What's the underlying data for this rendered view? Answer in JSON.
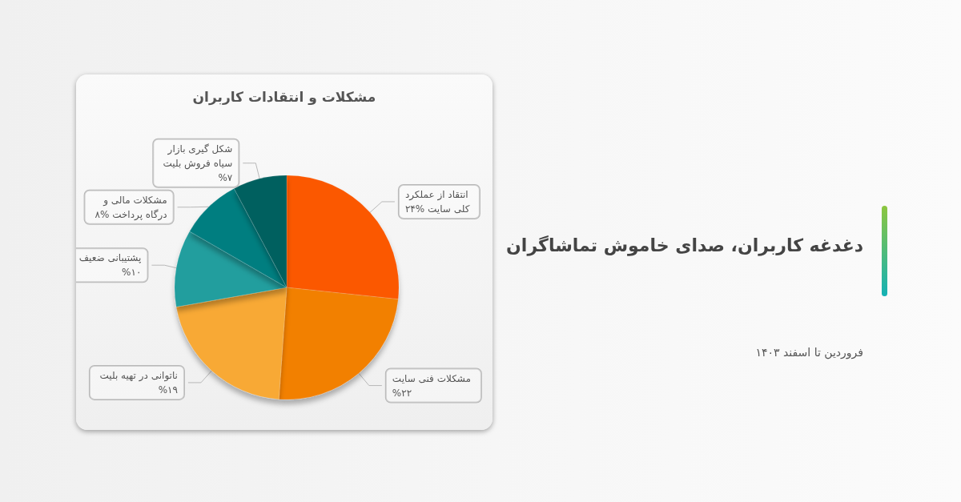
{
  "chart_data": {
    "type": "pie",
    "title": "مشکلات و انتقادات کاربران",
    "subtitle": "دغدغه کاربران، صدای خاموش تماشاگران",
    "annotations": [
      "فروردین تا اسفند ۱۴۰۳"
    ],
    "categories": [
      "انتقاد از عملکرد کلی سایت",
      "مشکلات فنی سایت",
      "ناتوانی در تهیه بلیت",
      "پشتیبانی ضعیف",
      "مشکلات مالی و درگاه پرداخت",
      "شکل گیری بازار سیاه فروش بلیت"
    ],
    "values": [
      24,
      22,
      19,
      10,
      8,
      7
    ],
    "value_labels": [
      "%۲۴",
      "%۲۲",
      "%۱۹",
      "%۱۰",
      "%۸",
      "%۷"
    ],
    "colors": [
      "#fb5800",
      "#f28006",
      "#f8a935",
      "#219e9e",
      "#047e80",
      "#04605f"
    ]
  }
}
